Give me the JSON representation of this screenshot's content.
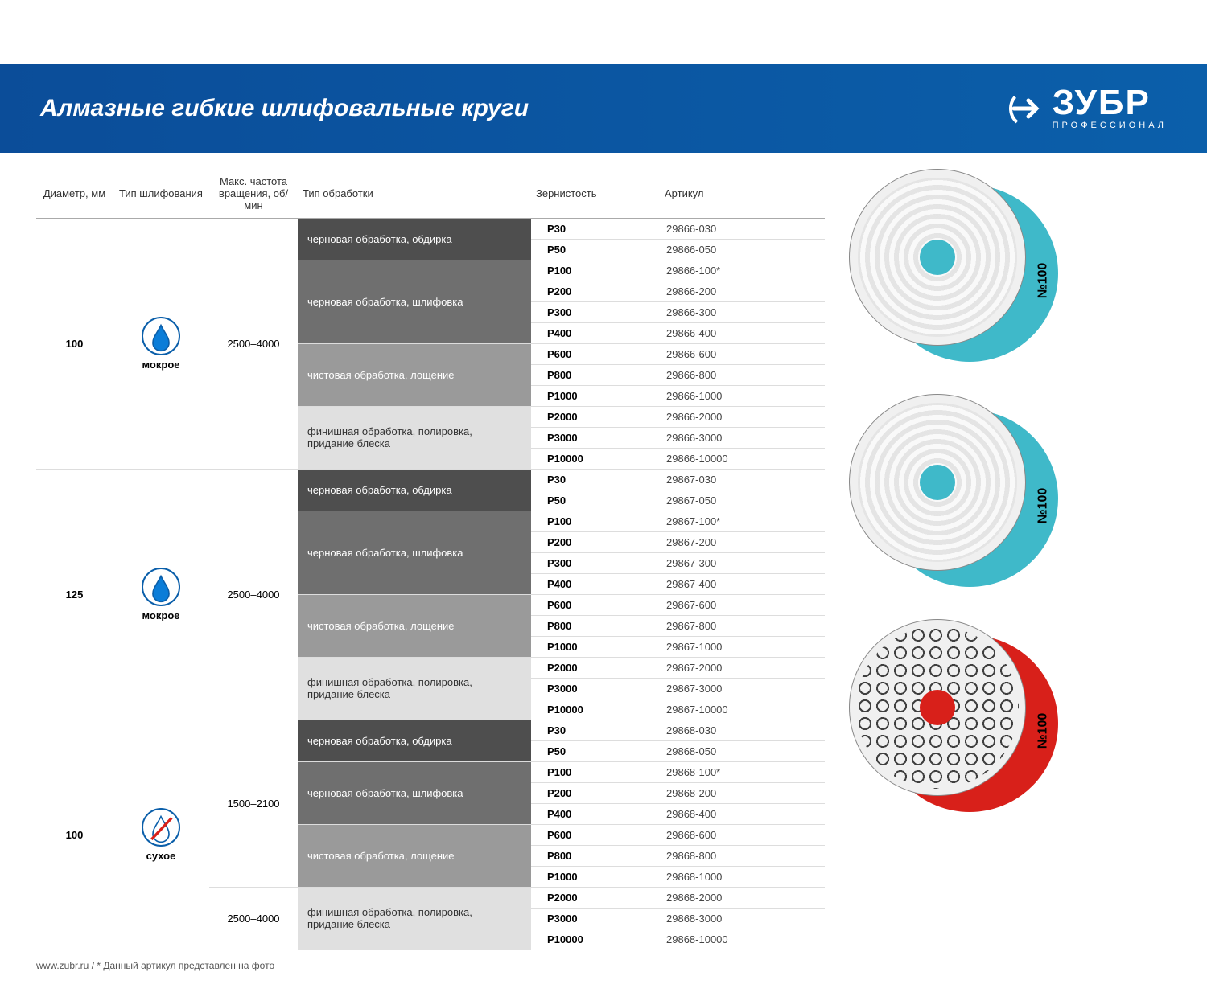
{
  "brand": {
    "name": "ЗУБР",
    "subtitle": "ПРОФЕССИОНАЛ"
  },
  "title": "Алмазные гибкие шлифовальные круги",
  "columns": {
    "diameter": "Диаметр, мм",
    "grinding_type": "Тип шлифования",
    "rpm": "Макс. частота вращения, об/мин",
    "treatment": "Тип обработки",
    "grit": "Зернистость",
    "article": "Артикул"
  },
  "types": {
    "wet": "мокрое",
    "dry": "сухое"
  },
  "treatments": {
    "t1": "черновая обработка, обдирка",
    "t2": "черновая обработка, шлифовка",
    "t3": "чистовая обработка, лощение",
    "t4a": "финишная обработка, полировка, придание блеска",
    "t4b": "финишная обработка, полировка, придание блеска"
  },
  "groups": [
    {
      "diameter": "100",
      "type": "wet",
      "rpm": "2500–4000",
      "blocks": [
        {
          "treat": "t1",
          "cls": "treat-1",
          "rows": [
            [
              "P30",
              "29866-030"
            ],
            [
              "P50",
              "29866-050"
            ]
          ]
        },
        {
          "treat": "t2",
          "cls": "treat-2",
          "rows": [
            [
              "P100",
              "29866-100*"
            ],
            [
              "P200",
              "29866-200"
            ],
            [
              "P300",
              "29866-300"
            ],
            [
              "P400",
              "29866-400"
            ]
          ]
        },
        {
          "treat": "t3",
          "cls": "treat-3",
          "rows": [
            [
              "P600",
              "29866-600"
            ],
            [
              "P800",
              "29866-800"
            ],
            [
              "P1000",
              "29866-1000"
            ]
          ]
        },
        {
          "treat": "t4a",
          "cls": "treat-4",
          "rows": [
            [
              "P2000",
              "29866-2000"
            ],
            [
              "P3000",
              "29866-3000"
            ],
            [
              "P10000",
              "29866-10000"
            ]
          ]
        }
      ]
    },
    {
      "diameter": "125",
      "type": "wet",
      "rpm": "2500–4000",
      "blocks": [
        {
          "treat": "t1",
          "cls": "treat-1",
          "rows": [
            [
              "P30",
              "29867-030"
            ],
            [
              "P50",
              "29867-050"
            ]
          ]
        },
        {
          "treat": "t2",
          "cls": "treat-2",
          "rows": [
            [
              "P100",
              "29867-100*"
            ],
            [
              "P200",
              "29867-200"
            ],
            [
              "P300",
              "29867-300"
            ],
            [
              "P400",
              "29867-400"
            ]
          ]
        },
        {
          "treat": "t3",
          "cls": "treat-3",
          "rows": [
            [
              "P600",
              "29867-600"
            ],
            [
              "P800",
              "29867-800"
            ],
            [
              "P1000",
              "29867-1000"
            ]
          ]
        },
        {
          "treat": "t4a",
          "cls": "treat-4",
          "rows": [
            [
              "P2000",
              "29867-2000"
            ],
            [
              "P3000",
              "29867-3000"
            ],
            [
              "P10000",
              "29867-10000"
            ]
          ]
        }
      ]
    },
    {
      "diameter": "100",
      "type": "dry",
      "blocks": [
        {
          "treat": "t1",
          "cls": "treat-1",
          "rpm": "1500–2100",
          "rows": [
            [
              "P30",
              "29868-030"
            ],
            [
              "P50",
              "29868-050"
            ]
          ]
        },
        {
          "treat": "t2",
          "cls": "treat-2",
          "rpm_merge": true,
          "rows": [
            [
              "P100",
              "29868-100*"
            ],
            [
              "P200",
              "29868-200"
            ],
            [
              "P400",
              "29868-400"
            ]
          ]
        },
        {
          "treat": "t3",
          "cls": "treat-3",
          "rpm_merge": true,
          "rows": [
            [
              "P600",
              "29868-600"
            ],
            [
              "P800",
              "29868-800"
            ],
            [
              "P1000",
              "29868-1000"
            ]
          ]
        },
        {
          "treat": "t4b",
          "cls": "treat-4",
          "rpm": "2500–4000",
          "rows": [
            [
              "P2000",
              "29868-2000"
            ],
            [
              "P3000",
              "29868-3000"
            ],
            [
              "P10000",
              "29868-10000"
            ]
          ]
        }
      ]
    }
  ],
  "discs": [
    {
      "back_color": "#3fb9c9",
      "center_color": "#3fb9c9",
      "pattern": "spiral",
      "label": "№100"
    },
    {
      "back_color": "#3fb9c9",
      "center_color": "#3fb9c9",
      "pattern": "spiral",
      "label": "№100"
    },
    {
      "back_color": "#d8201a",
      "center_color": "#d8201a",
      "pattern": "honey",
      "label": "№100"
    }
  ],
  "footnote": "www.zubr.ru   /  * Данный артикул представлен на фото",
  "colors": {
    "header_bg": "#0b5faa",
    "treat1": "#4e4e4e",
    "treat2": "#6f6f6f",
    "treat3": "#9a9a9a",
    "treat4": "#e0e0e0"
  }
}
